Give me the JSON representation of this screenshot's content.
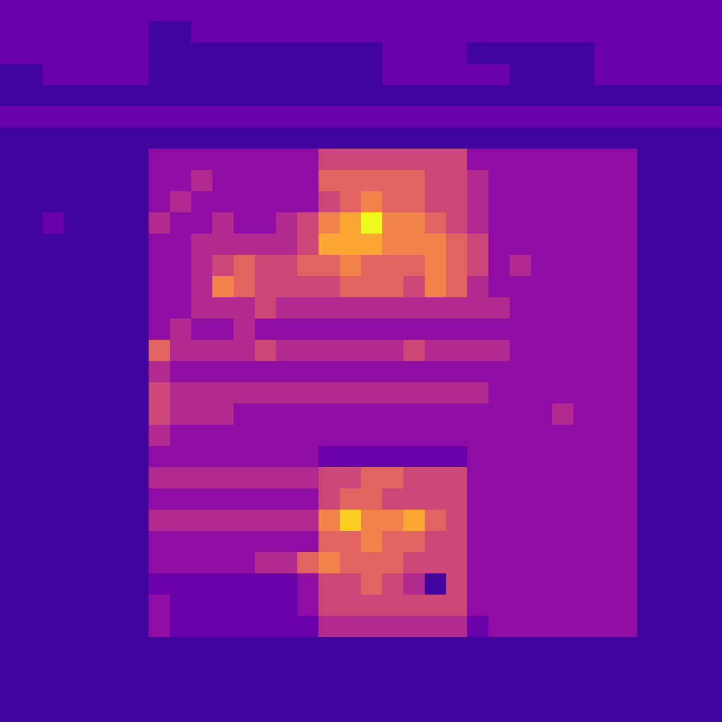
{
  "chart_data": {
    "type": "heatmap",
    "tick_labels": false,
    "zlim": [
      0,
      10
    ],
    "cells": [
      [
        2,
        2,
        2,
        2,
        2,
        2,
        2,
        2,
        2,
        2,
        2,
        2,
        2,
        2,
        2,
        2,
        2,
        2,
        2,
        2,
        2,
        2,
        2,
        2,
        2,
        2,
        2,
        2,
        2,
        2,
        2,
        2,
        2,
        2
      ],
      [
        2,
        2,
        2,
        2,
        2,
        2,
        2,
        1,
        1,
        2,
        2,
        2,
        2,
        2,
        2,
        2,
        2,
        2,
        2,
        2,
        2,
        2,
        2,
        2,
        2,
        2,
        2,
        2,
        2,
        2,
        2,
        2,
        2,
        2
      ],
      [
        2,
        2,
        2,
        2,
        2,
        2,
        2,
        1,
        1,
        1,
        1,
        1,
        1,
        1,
        1,
        1,
        1,
        1,
        2,
        2,
        2,
        2,
        1,
        1,
        1,
        1,
        1,
        1,
        2,
        2,
        2,
        2,
        2,
        2
      ],
      [
        1,
        1,
        2,
        2,
        2,
        2,
        2,
        1,
        1,
        1,
        1,
        1,
        1,
        1,
        1,
        1,
        1,
        1,
        2,
        2,
        2,
        2,
        2,
        2,
        1,
        1,
        1,
        1,
        2,
        2,
        2,
        2,
        2,
        2
      ],
      [
        1,
        1,
        1,
        1,
        1,
        1,
        1,
        1,
        1,
        1,
        1,
        1,
        1,
        1,
        1,
        1,
        1,
        1,
        1,
        1,
        1,
        1,
        1,
        1,
        1,
        1,
        1,
        1,
        1,
        1,
        1,
        1,
        1,
        1
      ],
      [
        2,
        2,
        2,
        2,
        2,
        2,
        2,
        2,
        2,
        2,
        2,
        2,
        2,
        2,
        2,
        2,
        2,
        2,
        2,
        2,
        2,
        2,
        2,
        2,
        2,
        2,
        2,
        2,
        2,
        2,
        2,
        2,
        2,
        2
      ],
      [
        1,
        1,
        1,
        1,
        1,
        1,
        1,
        1,
        1,
        1,
        1,
        1,
        1,
        1,
        1,
        1,
        1,
        1,
        1,
        1,
        1,
        1,
        1,
        1,
        1,
        1,
        1,
        1,
        1,
        1,
        1,
        1,
        1,
        1
      ],
      [
        1,
        1,
        1,
        1,
        1,
        1,
        1,
        3,
        3,
        3,
        3,
        3,
        3,
        3,
        3,
        5,
        5,
        5,
        5,
        5,
        5,
        5,
        3,
        3,
        3,
        3,
        3,
        3,
        3,
        3,
        1,
        1,
        1,
        1
      ],
      [
        1,
        1,
        1,
        1,
        1,
        1,
        1,
        3,
        3,
        4,
        3,
        3,
        3,
        3,
        3,
        6,
        6,
        6,
        6,
        6,
        5,
        5,
        4,
        3,
        3,
        3,
        3,
        3,
        3,
        3,
        1,
        1,
        1,
        1
      ],
      [
        1,
        1,
        1,
        1,
        1,
        1,
        1,
        3,
        4,
        3,
        3,
        3,
        3,
        3,
        3,
        5,
        6,
        7,
        6,
        6,
        5,
        5,
        4,
        3,
        3,
        3,
        3,
        3,
        3,
        3,
        1,
        1,
        1,
        1
      ],
      [
        1,
        1,
        2,
        1,
        1,
        1,
        1,
        4,
        3,
        3,
        4,
        3,
        3,
        4,
        5,
        7,
        8,
        10,
        7,
        7,
        6,
        5,
        4,
        3,
        3,
        3,
        3,
        3,
        3,
        3,
        1,
        1,
        1,
        1
      ],
      [
        1,
        1,
        1,
        1,
        1,
        1,
        1,
        3,
        3,
        4,
        4,
        4,
        4,
        4,
        5,
        8,
        8,
        8,
        7,
        7,
        7,
        6,
        5,
        3,
        3,
        3,
        3,
        3,
        3,
        3,
        1,
        1,
        1,
        1
      ],
      [
        1,
        1,
        1,
        1,
        1,
        1,
        1,
        3,
        3,
        4,
        5,
        6,
        5,
        5,
        6,
        6,
        7,
        6,
        6,
        6,
        7,
        6,
        5,
        3,
        4,
        3,
        3,
        3,
        3,
        3,
        1,
        1,
        1,
        1
      ],
      [
        1,
        1,
        1,
        1,
        1,
        1,
        1,
        3,
        3,
        4,
        7,
        6,
        5,
        5,
        5,
        5,
        6,
        6,
        6,
        5,
        7,
        6,
        4,
        3,
        3,
        3,
        3,
        3,
        3,
        3,
        1,
        1,
        1,
        1
      ],
      [
        1,
        1,
        1,
        1,
        1,
        1,
        1,
        3,
        3,
        4,
        4,
        4,
        5,
        4,
        4,
        4,
        4,
        4,
        4,
        4,
        4,
        4,
        4,
        4,
        3,
        3,
        3,
        3,
        3,
        3,
        1,
        1,
        1,
        1
      ],
      [
        1,
        1,
        1,
        1,
        1,
        1,
        1,
        3,
        4,
        3,
        3,
        4,
        3,
        3,
        3,
        3,
        3,
        3,
        3,
        3,
        3,
        3,
        3,
        3,
        3,
        3,
        3,
        3,
        3,
        3,
        1,
        1,
        1,
        1
      ],
      [
        1,
        1,
        1,
        1,
        1,
        1,
        1,
        6,
        4,
        4,
        4,
        4,
        5,
        4,
        4,
        4,
        4,
        4,
        4,
        5,
        4,
        4,
        4,
        4,
        3,
        3,
        3,
        3,
        3,
        3,
        1,
        1,
        1,
        1
      ],
      [
        1,
        1,
        1,
        1,
        1,
        1,
        1,
        4,
        3,
        3,
        3,
        3,
        3,
        3,
        3,
        3,
        3,
        3,
        3,
        3,
        3,
        3,
        3,
        3,
        3,
        3,
        3,
        3,
        3,
        3,
        1,
        1,
        1,
        1
      ],
      [
        1,
        1,
        1,
        1,
        1,
        1,
        1,
        5,
        4,
        4,
        4,
        4,
        4,
        4,
        4,
        4,
        4,
        4,
        4,
        4,
        4,
        4,
        4,
        3,
        3,
        3,
        3,
        3,
        3,
        3,
        1,
        1,
        1,
        1
      ],
      [
        1,
        1,
        1,
        1,
        1,
        1,
        1,
        5,
        4,
        4,
        4,
        3,
        3,
        3,
        3,
        3,
        3,
        3,
        3,
        3,
        3,
        3,
        3,
        3,
        3,
        3,
        4,
        3,
        3,
        3,
        1,
        1,
        1,
        1
      ],
      [
        1,
        1,
        1,
        1,
        1,
        1,
        1,
        4,
        3,
        3,
        3,
        3,
        3,
        3,
        3,
        3,
        3,
        3,
        3,
        3,
        3,
        3,
        3,
        3,
        3,
        3,
        3,
        3,
        3,
        3,
        1,
        1,
        1,
        1
      ],
      [
        1,
        1,
        1,
        1,
        1,
        1,
        1,
        3,
        3,
        3,
        3,
        3,
        3,
        3,
        3,
        2,
        2,
        2,
        2,
        2,
        2,
        2,
        3,
        3,
        3,
        3,
        3,
        3,
        3,
        3,
        1,
        1,
        1,
        1
      ],
      [
        1,
        1,
        1,
        1,
        1,
        1,
        1,
        4,
        4,
        4,
        4,
        4,
        4,
        4,
        4,
        5,
        5,
        6,
        6,
        5,
        5,
        5,
        3,
        3,
        3,
        3,
        3,
        3,
        3,
        3,
        1,
        1,
        1,
        1
      ],
      [
        1,
        1,
        1,
        1,
        1,
        1,
        1,
        3,
        3,
        3,
        3,
        3,
        3,
        3,
        3,
        5,
        6,
        6,
        5,
        5,
        5,
        5,
        3,
        3,
        3,
        3,
        3,
        3,
        3,
        3,
        1,
        1,
        1,
        1
      ],
      [
        1,
        1,
        1,
        1,
        1,
        1,
        1,
        4,
        4,
        4,
        4,
        4,
        4,
        4,
        4,
        7,
        9,
        7,
        7,
        8,
        6,
        5,
        3,
        3,
        3,
        3,
        3,
        3,
        3,
        3,
        1,
        1,
        1,
        1
      ],
      [
        1,
        1,
        1,
        1,
        1,
        1,
        1,
        3,
        3,
        3,
        3,
        3,
        3,
        3,
        3,
        6,
        6,
        7,
        6,
        6,
        5,
        5,
        3,
        3,
        3,
        3,
        3,
        3,
        3,
        3,
        1,
        1,
        1,
        1
      ],
      [
        1,
        1,
        1,
        1,
        1,
        1,
        1,
        3,
        3,
        3,
        3,
        3,
        4,
        4,
        6,
        7,
        6,
        6,
        6,
        5,
        5,
        5,
        3,
        3,
        3,
        3,
        3,
        3,
        3,
        3,
        1,
        1,
        1,
        1
      ],
      [
        1,
        1,
        1,
        1,
        1,
        1,
        1,
        2,
        2,
        2,
        2,
        2,
        2,
        2,
        3,
        5,
        5,
        6,
        5,
        4,
        1,
        5,
        3,
        3,
        3,
        3,
        3,
        3,
        3,
        3,
        1,
        1,
        1,
        1
      ],
      [
        1,
        1,
        1,
        1,
        1,
        1,
        1,
        3,
        2,
        2,
        2,
        2,
        2,
        2,
        3,
        5,
        5,
        5,
        5,
        5,
        5,
        5,
        3,
        3,
        3,
        3,
        3,
        3,
        3,
        3,
        1,
        1,
        1,
        1
      ],
      [
        1,
        1,
        1,
        1,
        1,
        1,
        1,
        3,
        2,
        2,
        2,
        2,
        2,
        2,
        2,
        4,
        4,
        4,
        4,
        4,
        4,
        4,
        2,
        3,
        3,
        3,
        3,
        3,
        3,
        3,
        1,
        1,
        1,
        1
      ],
      [
        1,
        1,
        1,
        1,
        1,
        1,
        1,
        1,
        1,
        1,
        1,
        1,
        1,
        1,
        1,
        1,
        1,
        1,
        1,
        1,
        1,
        1,
        1,
        1,
        1,
        1,
        1,
        1,
        1,
        1,
        1,
        1,
        1,
        1
      ],
      [
        1,
        1,
        1,
        1,
        1,
        1,
        1,
        1,
        1,
        1,
        1,
        1,
        1,
        1,
        1,
        1,
        1,
        1,
        1,
        1,
        1,
        1,
        1,
        1,
        1,
        1,
        1,
        1,
        1,
        1,
        1,
        1,
        1,
        1
      ],
      [
        1,
        1,
        1,
        1,
        1,
        1,
        1,
        1,
        1,
        1,
        1,
        1,
        1,
        1,
        1,
        1,
        1,
        1,
        1,
        1,
        1,
        1,
        1,
        1,
        1,
        1,
        1,
        1,
        1,
        1,
        1,
        1,
        1,
        1
      ],
      [
        1,
        1,
        1,
        1,
        1,
        1,
        1,
        1,
        1,
        1,
        1,
        1,
        1,
        1,
        1,
        1,
        1,
        1,
        1,
        1,
        1,
        1,
        1,
        1,
        1,
        1,
        1,
        1,
        1,
        1,
        1,
        1,
        1,
        1
      ]
    ]
  }
}
